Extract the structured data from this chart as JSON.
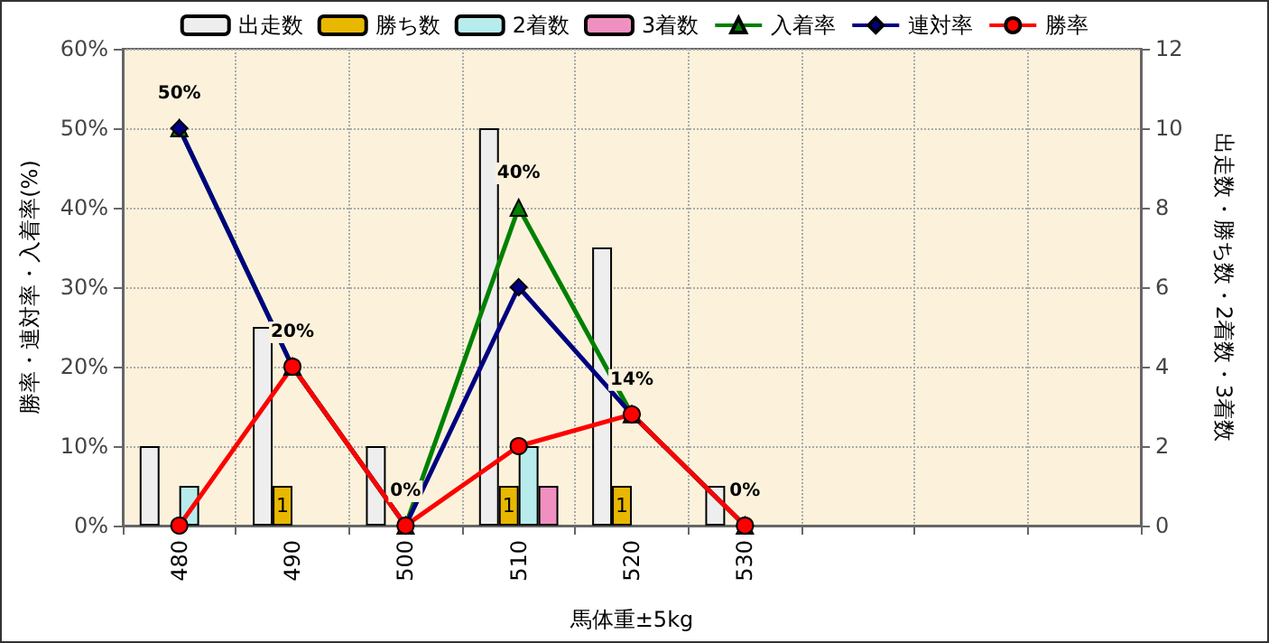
{
  "chart_data": {
    "type": "bar",
    "xlabel": "馬体重±5kg",
    "ylabel": "勝率・連対率・入着率(%)",
    "y2label": "出走数・勝ち数・2着数・3着数",
    "categories": [
      "480",
      "490",
      "500",
      "510",
      "520",
      "530",
      null,
      null,
      null
    ],
    "series": [
      {
        "name": "出走数",
        "axis": "y2",
        "color": "#eeeeee",
        "values": [
          2,
          5,
          2,
          10,
          7,
          1,
          null,
          null,
          null
        ]
      },
      {
        "name": "勝ち数",
        "axis": "y2",
        "color": "#e8b800",
        "values": [
          0,
          1,
          0,
          1,
          1,
          0,
          null,
          null,
          null
        ],
        "value_labels": [
          null,
          "1",
          null,
          "1",
          "1",
          null,
          null,
          null,
          null
        ]
      },
      {
        "name": "2着数",
        "axis": "y2",
        "color": "#b8ecec",
        "values": [
          1,
          0,
          0,
          2,
          0,
          0,
          null,
          null,
          null
        ]
      },
      {
        "name": "3着数",
        "axis": "y2",
        "color": "#f090c0",
        "values": [
          0,
          0,
          0,
          1,
          0,
          0,
          null,
          null,
          null
        ]
      },
      {
        "name": "入着率",
        "type": "line",
        "marker": "triangle",
        "color": "#008000",
        "values": [
          50,
          20,
          0,
          40,
          14,
          0,
          null,
          null,
          null
        ],
        "value_labels": [
          "50%",
          "20%",
          "0%",
          "40%",
          "14%",
          "0%",
          null,
          null,
          null
        ]
      },
      {
        "name": "連対率",
        "type": "line",
        "marker": "diamond",
        "color": "#000080",
        "values": [
          50,
          20,
          0,
          30,
          14,
          0,
          null,
          null,
          null
        ]
      },
      {
        "name": "勝率",
        "type": "line",
        "marker": "circle",
        "color": "#ff0000",
        "values": [
          0,
          20,
          0,
          10,
          14,
          0,
          null,
          null,
          null
        ]
      }
    ],
    "ylim": [
      0,
      60
    ],
    "yticks": [
      {
        "value": 0,
        "label": "0%"
      },
      {
        "value": 10,
        "label": "10%"
      },
      {
        "value": 20,
        "label": "20%"
      },
      {
        "value": 30,
        "label": "30%"
      },
      {
        "value": 40,
        "label": "40%"
      },
      {
        "value": 50,
        "label": "50%"
      },
      {
        "value": 60,
        "label": "60%"
      }
    ],
    "y2lim": [
      0,
      12
    ],
    "y2ticks": [
      0,
      2,
      4,
      6,
      8,
      10,
      12
    ],
    "grid": true,
    "legend": "top"
  }
}
